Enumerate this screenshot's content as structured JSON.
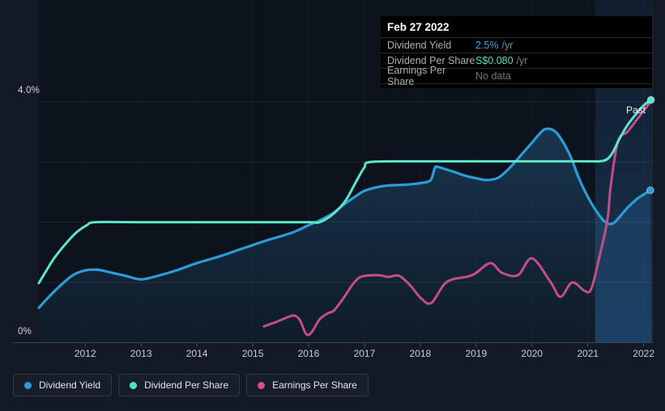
{
  "tooltip": {
    "date": "Feb 27 2022",
    "rows": [
      {
        "label": "Dividend Yield",
        "value": "2.5%",
        "suffix": "/yr",
        "value_color": "#3da8e4"
      },
      {
        "label": "Dividend Per Share",
        "value": "S$0.080",
        "suffix": "/yr",
        "value_color": "#55e0c4"
      },
      {
        "label": "Earnings Per Share",
        "value": "No data",
        "suffix": "",
        "value_color": "#6e7780"
      }
    ]
  },
  "labels": {
    "past": "Past",
    "y_top": "4.0%",
    "y_bottom": "0%"
  },
  "legend": [
    {
      "label": "Dividend Yield",
      "color": "#2d9bd8"
    },
    {
      "label": "Dividend Per Share",
      "color": "#4fe3c1"
    },
    {
      "label": "Earnings Per Share",
      "color": "#d1518f"
    }
  ],
  "chart_data": {
    "type": "line",
    "title": "Dividend history",
    "x_axis": {
      "min": 2011.17,
      "max": 2022.15,
      "tick_labels": [
        "2012",
        "2013",
        "2014",
        "2015",
        "2016",
        "2017",
        "2018",
        "2019",
        "2020",
        "2021",
        "2022"
      ]
    },
    "y_axis": {
      "min": 0,
      "max": 4,
      "unit": "%",
      "top_label": "4.0%",
      "bottom_label": "0%",
      "gridlines": [
        1,
        2,
        3,
        4
      ]
    },
    "past_band": {
      "from": 2021.13,
      "to": 2022.15
    },
    "now_line": 2022.16,
    "legend_position": "bottom-left",
    "series": [
      {
        "name": "Dividend Yield",
        "color": "#2d9bd8",
        "width": 3.2,
        "area": true,
        "end_dot": true,
        "points": [
          [
            2011.17,
            0.58
          ],
          [
            2011.35,
            0.76
          ],
          [
            2011.57,
            0.96
          ],
          [
            2011.78,
            1.12
          ],
          [
            2012.0,
            1.2
          ],
          [
            2012.22,
            1.21
          ],
          [
            2012.43,
            1.17
          ],
          [
            2012.72,
            1.11
          ],
          [
            2013.0,
            1.05
          ],
          [
            2013.3,
            1.11
          ],
          [
            2013.6,
            1.19
          ],
          [
            2014.0,
            1.32
          ],
          [
            2014.4,
            1.43
          ],
          [
            2014.75,
            1.54
          ],
          [
            2015.0,
            1.62
          ],
          [
            2015.26,
            1.7
          ],
          [
            2015.55,
            1.78
          ],
          [
            2015.77,
            1.85
          ],
          [
            2016.0,
            1.95
          ],
          [
            2016.2,
            2.03
          ],
          [
            2016.42,
            2.14
          ],
          [
            2016.64,
            2.3
          ],
          [
            2016.86,
            2.44
          ],
          [
            2017.0,
            2.52
          ],
          [
            2017.22,
            2.58
          ],
          [
            2017.43,
            2.61
          ],
          [
            2017.72,
            2.62
          ],
          [
            2017.94,
            2.64
          ],
          [
            2018.13,
            2.67
          ],
          [
            2018.2,
            2.72
          ],
          [
            2018.26,
            2.9
          ],
          [
            2018.3,
            2.92
          ],
          [
            2018.45,
            2.88
          ],
          [
            2018.62,
            2.83
          ],
          [
            2018.81,
            2.77
          ],
          [
            2019.0,
            2.73
          ],
          [
            2019.2,
            2.7
          ],
          [
            2019.4,
            2.74
          ],
          [
            2019.61,
            2.91
          ],
          [
            2019.83,
            3.14
          ],
          [
            2020.0,
            3.32
          ],
          [
            2020.16,
            3.49
          ],
          [
            2020.26,
            3.55
          ],
          [
            2020.41,
            3.51
          ],
          [
            2020.55,
            3.34
          ],
          [
            2020.7,
            3.07
          ],
          [
            2020.84,
            2.73
          ],
          [
            2021.0,
            2.42
          ],
          [
            2021.14,
            2.2
          ],
          [
            2021.28,
            2.03
          ],
          [
            2021.38,
            1.97
          ],
          [
            2021.47,
            1.99
          ],
          [
            2021.57,
            2.09
          ],
          [
            2021.71,
            2.24
          ],
          [
            2021.86,
            2.37
          ],
          [
            2022.0,
            2.46
          ],
          [
            2022.12,
            2.53
          ]
        ]
      },
      {
        "name": "Earnings Per Share",
        "color": "#c44d87",
        "width": 3,
        "area": false,
        "end_dot": false,
        "points": [
          [
            2015.2,
            0.27
          ],
          [
            2015.41,
            0.34
          ],
          [
            2015.62,
            0.42
          ],
          [
            2015.74,
            0.45
          ],
          [
            2015.84,
            0.38
          ],
          [
            2015.96,
            0.14
          ],
          [
            2016.06,
            0.18
          ],
          [
            2016.2,
            0.39
          ],
          [
            2016.35,
            0.49
          ],
          [
            2016.45,
            0.53
          ],
          [
            2016.61,
            0.72
          ],
          [
            2016.81,
            0.99
          ],
          [
            2016.96,
            1.1
          ],
          [
            2017.25,
            1.12
          ],
          [
            2017.43,
            1.09
          ],
          [
            2017.62,
            1.11
          ],
          [
            2017.83,
            0.94
          ],
          [
            2018.01,
            0.74
          ],
          [
            2018.2,
            0.66
          ],
          [
            2018.48,
            1.01
          ],
          [
            2018.93,
            1.12
          ],
          [
            2019.25,
            1.32
          ],
          [
            2019.46,
            1.16
          ],
          [
            2019.75,
            1.12
          ],
          [
            2020.0,
            1.4
          ],
          [
            2020.33,
            1.01
          ],
          [
            2020.51,
            0.76
          ],
          [
            2020.72,
            1.0
          ],
          [
            2020.94,
            0.86
          ],
          [
            2021.06,
            0.89
          ],
          [
            2021.2,
            1.39
          ],
          [
            2021.35,
            2.03
          ],
          [
            2021.41,
            2.6
          ],
          [
            2021.54,
            3.34
          ],
          [
            2021.71,
            3.5
          ],
          [
            2021.86,
            3.68
          ],
          [
            2022.0,
            3.85
          ],
          [
            2022.1,
            3.97
          ]
        ]
      },
      {
        "name": "Dividend Per Share",
        "color": "#5fe4c6",
        "width": 3,
        "area": false,
        "end_dot": true,
        "points": [
          [
            2011.17,
            0.99
          ],
          [
            2011.3,
            1.19
          ],
          [
            2011.45,
            1.41
          ],
          [
            2011.64,
            1.63
          ],
          [
            2011.83,
            1.82
          ],
          [
            2012.03,
            1.95
          ],
          [
            2012.19,
            2.0
          ],
          [
            2013.0,
            2.0
          ],
          [
            2014.0,
            2.0
          ],
          [
            2015.0,
            2.0
          ],
          [
            2016.0,
            2.0
          ],
          [
            2016.2,
            2.0
          ],
          [
            2016.46,
            2.15
          ],
          [
            2016.67,
            2.37
          ],
          [
            2016.86,
            2.69
          ],
          [
            2017.0,
            2.91
          ],
          [
            2017.12,
            3.0
          ],
          [
            2018.0,
            3.01
          ],
          [
            2019.0,
            3.01
          ],
          [
            2020.0,
            3.01
          ],
          [
            2021.0,
            3.01
          ],
          [
            2021.28,
            3.02
          ],
          [
            2021.42,
            3.12
          ],
          [
            2021.57,
            3.39
          ],
          [
            2021.71,
            3.61
          ],
          [
            2021.86,
            3.79
          ],
          [
            2022.0,
            3.94
          ],
          [
            2022.13,
            4.03
          ]
        ]
      }
    ]
  }
}
